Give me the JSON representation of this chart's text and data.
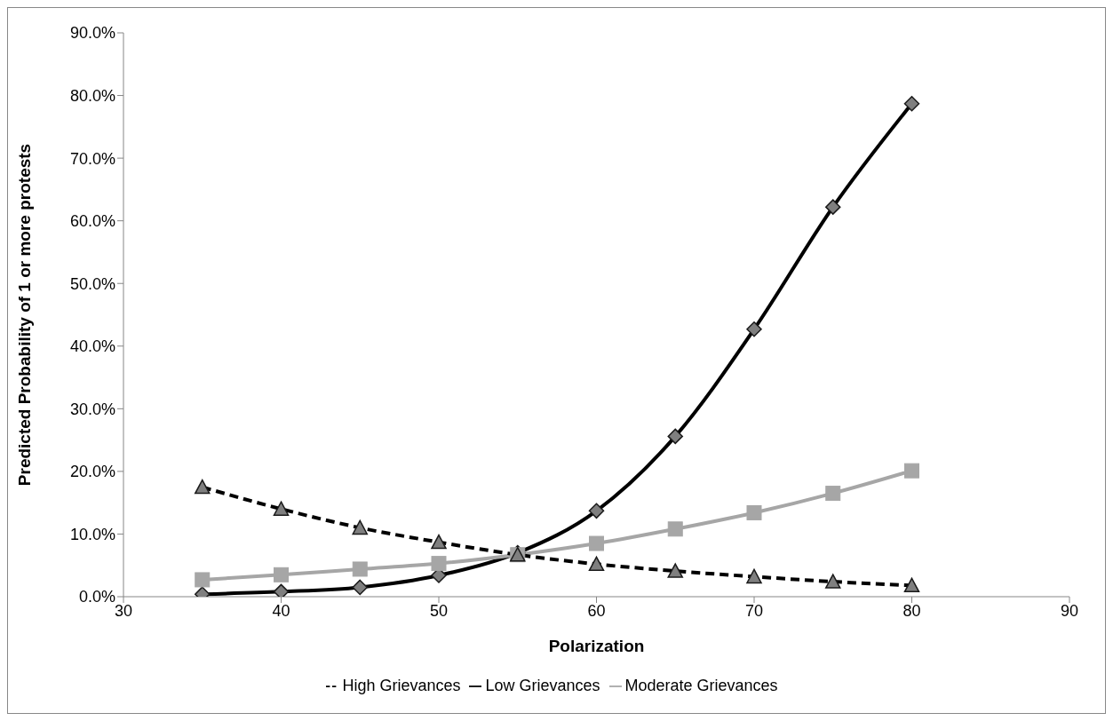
{
  "chart_data": {
    "type": "line",
    "xlabel": "Polarization",
    "ylabel": "Predicted Probability of 1 or more protests",
    "x": [
      35,
      40,
      45,
      50,
      55,
      60,
      65,
      70,
      75,
      80
    ],
    "series": [
      {
        "name": "Low Grievances",
        "color": "#000000",
        "marker": "diamond",
        "line_style": "solid",
        "values": [
          0.4,
          0.8,
          1.5,
          3.4,
          7.0,
          13.7,
          25.6,
          42.7,
          62.2,
          78.7
        ]
      },
      {
        "name": "Moderate Grievances",
        "color": "#a6a6a6",
        "marker": "square",
        "line_style": "solid",
        "values": [
          2.7,
          3.5,
          4.4,
          5.3,
          6.7,
          8.5,
          10.8,
          13.4,
          16.5,
          20.1
        ]
      },
      {
        "name": "High Grievances",
        "color": "#000000",
        "marker": "triangle",
        "line_style": "dashed",
        "values": [
          17.5,
          14.0,
          11.0,
          8.7,
          6.7,
          5.2,
          4.1,
          3.2,
          2.4,
          1.8
        ]
      }
    ],
    "xlim": [
      30,
      90
    ],
    "xticks": [
      30,
      40,
      50,
      60,
      70,
      80,
      90
    ],
    "ylim": [
      0,
      90
    ],
    "yticks": [
      {
        "value": 0,
        "label": "0.0%"
      },
      {
        "value": 10,
        "label": "10.0%"
      },
      {
        "value": 20,
        "label": "20.0%"
      },
      {
        "value": 30,
        "label": "30.0%"
      },
      {
        "value": 40,
        "label": "40.0%"
      },
      {
        "value": 50,
        "label": "50.0%"
      },
      {
        "value": 60,
        "label": "60.0%"
      },
      {
        "value": 70,
        "label": "70.0%"
      },
      {
        "value": 80,
        "label": "80.0%"
      },
      {
        "value": 90,
        "label": "90.0%"
      }
    ],
    "grid": false,
    "legend": "bottom"
  }
}
